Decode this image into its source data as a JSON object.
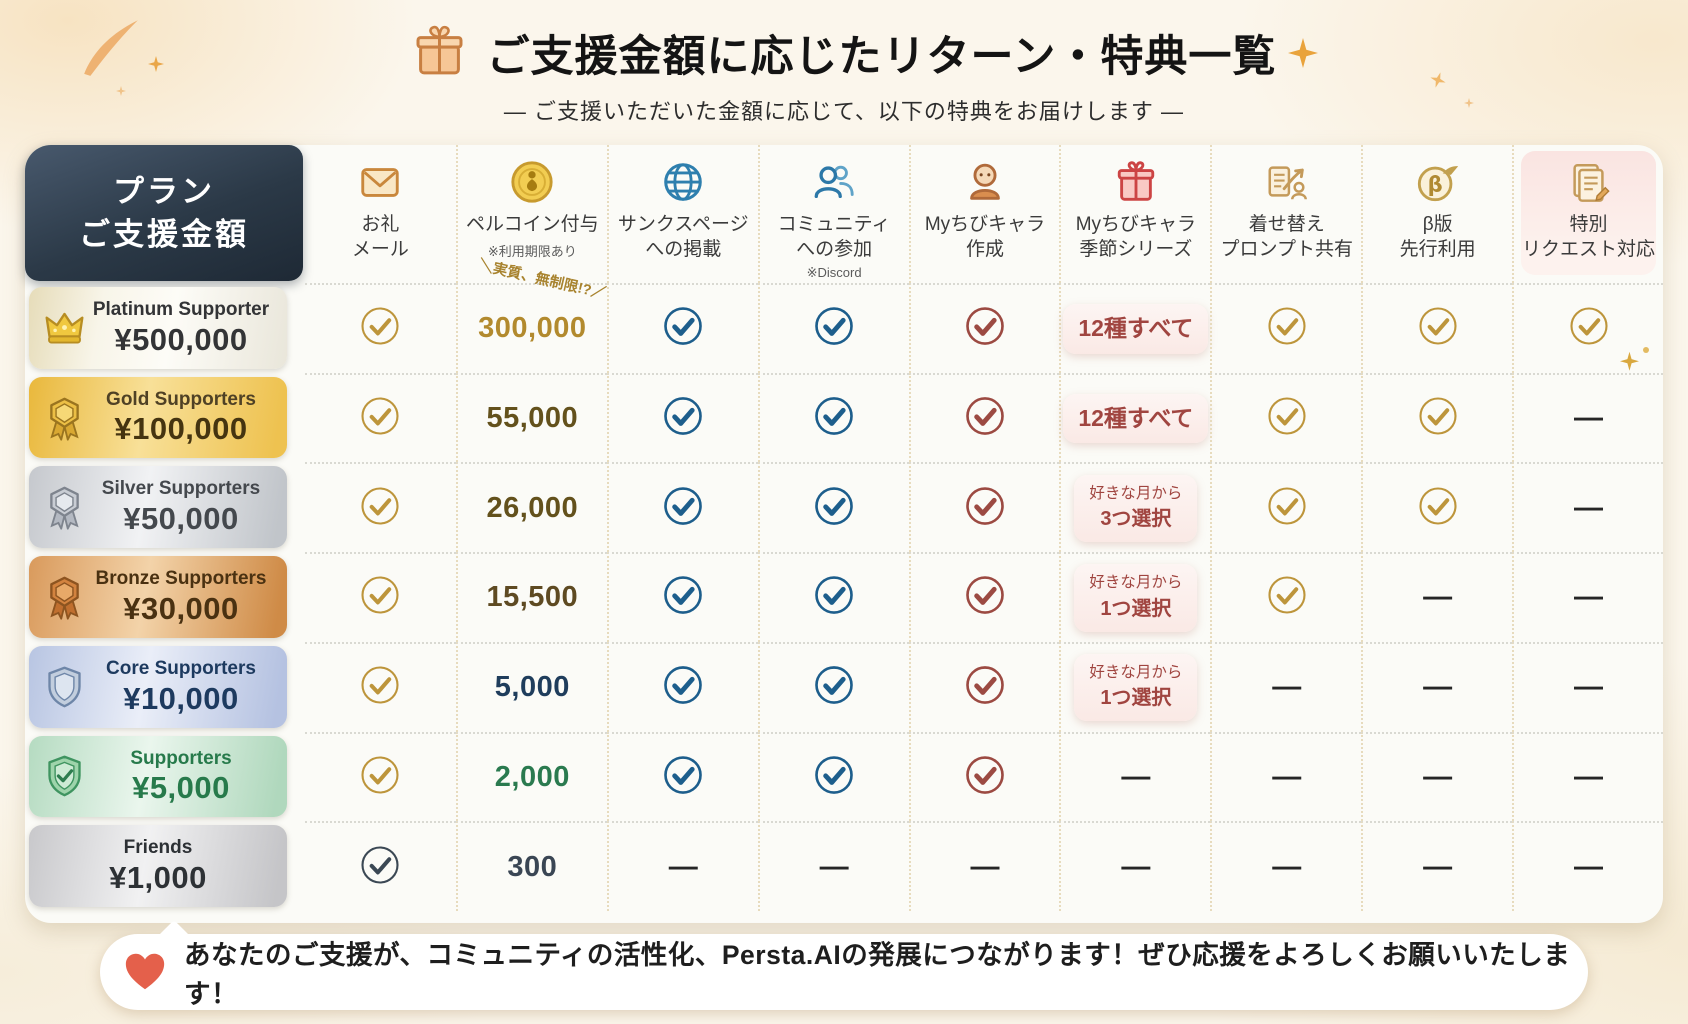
{
  "page": {
    "title": "ご支援金額に応じたリターン・特典一覧",
    "subtitle": "― ご支援いただいた金額に応じて、以下の特典をお届けします ―"
  },
  "footer": {
    "icon": "heart-icon",
    "text": "あなたのご支援が、コミュニティの活性化、Persta.AIの発展につながります！ぜひ応援をよろしくお願いいたします！"
  },
  "colors": {
    "checks": {
      "gold": "#bd953b",
      "blue": "#1d5e8c",
      "red": "#9c4a42",
      "navy": "#3b4854"
    },
    "plan_header_bg": "#2b3947",
    "highlight_pink": "#fae4e1",
    "sparkle": "#e9a648",
    "heart": "#e4604b"
  },
  "table": {
    "plan_header": {
      "line1": "プラン",
      "line2": "ご支援金額"
    },
    "columns": [
      {
        "icon": "mail-icon",
        "lines": [
          "お礼",
          "メール"
        ],
        "note": ""
      },
      {
        "icon": "coin-icon",
        "lines": [
          "ペルコイン付与"
        ],
        "note": "※利用期限あり"
      },
      {
        "icon": "globe-icon",
        "lines": [
          "サンクスページ",
          "への掲載"
        ],
        "note": ""
      },
      {
        "icon": "community-icon",
        "lines": [
          "コミュニティ",
          "への参加"
        ],
        "note": "※Discord"
      },
      {
        "icon": "chibi-icon",
        "lines": [
          "Myちびキャラ",
          "作成"
        ],
        "note": ""
      },
      {
        "icon": "gift-icon",
        "lines": [
          "Myちびキャラ",
          "季節シリーズ"
        ],
        "note": ""
      },
      {
        "icon": "dressup-icon",
        "lines": [
          "着せ替え",
          "プロンプト共有"
        ],
        "note": ""
      },
      {
        "icon": "beta-icon",
        "lines": [
          "β版",
          "先行利用"
        ],
        "note": ""
      },
      {
        "icon": "request-icon",
        "lines": [
          "特別",
          "リクエスト対応"
        ],
        "note": "",
        "highlight": true
      }
    ],
    "tiers": [
      {
        "theme": "platinum",
        "icon": "crown-icon",
        "name": "Platinum Supporter",
        "price": "¥500,000"
      },
      {
        "theme": "gold",
        "icon": "gold-medal-icon",
        "name": "Gold Supporters",
        "price": "¥100,000"
      },
      {
        "theme": "silver",
        "icon": "silver-medal-icon",
        "name": "Silver Supporters",
        "price": "¥50,000"
      },
      {
        "theme": "bronze",
        "icon": "bronze-medal-icon",
        "name": "Bronze Supporters",
        "price": "¥30,000"
      },
      {
        "theme": "core",
        "icon": "core-shield-icon",
        "name": "Core Supporters",
        "price": "¥10,000"
      },
      {
        "theme": "supporters",
        "icon": "green-shield-icon",
        "name": "Supporters",
        "price": "¥5,000"
      },
      {
        "theme": "friends",
        "icon": "",
        "name": "Friends",
        "price": "¥1,000"
      }
    ],
    "rows": [
      {
        "tier": "platinum",
        "cells": [
          {
            "type": "check",
            "color": "gold"
          },
          {
            "type": "coin",
            "value": "300,000",
            "color": "#b28a2e",
            "annotation": "＼実質、無制限!?／"
          },
          {
            "type": "check",
            "color": "blue"
          },
          {
            "type": "check",
            "color": "blue"
          },
          {
            "type": "check",
            "color": "red"
          },
          {
            "type": "pill",
            "lines": [
              "12種すべて"
            ]
          },
          {
            "type": "check",
            "color": "gold"
          },
          {
            "type": "check",
            "color": "gold"
          },
          {
            "type": "check",
            "color": "gold",
            "sparkle": true
          }
        ]
      },
      {
        "tier": "gold",
        "cells": [
          {
            "type": "check",
            "color": "gold"
          },
          {
            "type": "coin",
            "value": "55,000",
            "color": "#63511c"
          },
          {
            "type": "check",
            "color": "blue"
          },
          {
            "type": "check",
            "color": "blue"
          },
          {
            "type": "check",
            "color": "red"
          },
          {
            "type": "pill",
            "lines": [
              "12種すべて"
            ]
          },
          {
            "type": "check",
            "color": "gold"
          },
          {
            "type": "check",
            "color": "gold"
          },
          {
            "type": "dash"
          }
        ]
      },
      {
        "tier": "silver",
        "cells": [
          {
            "type": "check",
            "color": "gold"
          },
          {
            "type": "coin",
            "value": "26,000",
            "color": "#63511c"
          },
          {
            "type": "check",
            "color": "blue"
          },
          {
            "type": "check",
            "color": "blue"
          },
          {
            "type": "check",
            "color": "red"
          },
          {
            "type": "pill",
            "lines": [
              "好きな月から",
              "3つ選択"
            ]
          },
          {
            "type": "check",
            "color": "gold"
          },
          {
            "type": "check",
            "color": "gold"
          },
          {
            "type": "dash"
          }
        ]
      },
      {
        "tier": "bronze",
        "cells": [
          {
            "type": "check",
            "color": "gold"
          },
          {
            "type": "coin",
            "value": "15,500",
            "color": "#5e4a22"
          },
          {
            "type": "check",
            "color": "blue"
          },
          {
            "type": "check",
            "color": "blue"
          },
          {
            "type": "check",
            "color": "red"
          },
          {
            "type": "pill",
            "lines": [
              "好きな月から",
              "1つ選択"
            ]
          },
          {
            "type": "check",
            "color": "gold"
          },
          {
            "type": "dash"
          },
          {
            "type": "dash"
          }
        ]
      },
      {
        "tier": "core",
        "cells": [
          {
            "type": "check",
            "color": "gold"
          },
          {
            "type": "coin",
            "value": "5,000",
            "color": "#1f3d5c"
          },
          {
            "type": "check",
            "color": "blue"
          },
          {
            "type": "check",
            "color": "blue"
          },
          {
            "type": "check",
            "color": "red"
          },
          {
            "type": "pill",
            "lines": [
              "好きな月から",
              "1つ選択"
            ]
          },
          {
            "type": "dash"
          },
          {
            "type": "dash"
          },
          {
            "type": "dash"
          }
        ]
      },
      {
        "tier": "supporters",
        "cells": [
          {
            "type": "check",
            "color": "gold"
          },
          {
            "type": "coin",
            "value": "2,000",
            "color": "#2a7a4f"
          },
          {
            "type": "check",
            "color": "blue"
          },
          {
            "type": "check",
            "color": "blue"
          },
          {
            "type": "check",
            "color": "red"
          },
          {
            "type": "dash"
          },
          {
            "type": "dash"
          },
          {
            "type": "dash"
          },
          {
            "type": "dash"
          }
        ]
      },
      {
        "tier": "friends",
        "cells": [
          {
            "type": "check",
            "color": "navy"
          },
          {
            "type": "coin",
            "value": "300",
            "color": "#3a4654"
          },
          {
            "type": "dash"
          },
          {
            "type": "dash"
          },
          {
            "type": "dash"
          },
          {
            "type": "dash"
          },
          {
            "type": "dash"
          },
          {
            "type": "dash"
          },
          {
            "type": "dash"
          }
        ]
      }
    ]
  }
}
